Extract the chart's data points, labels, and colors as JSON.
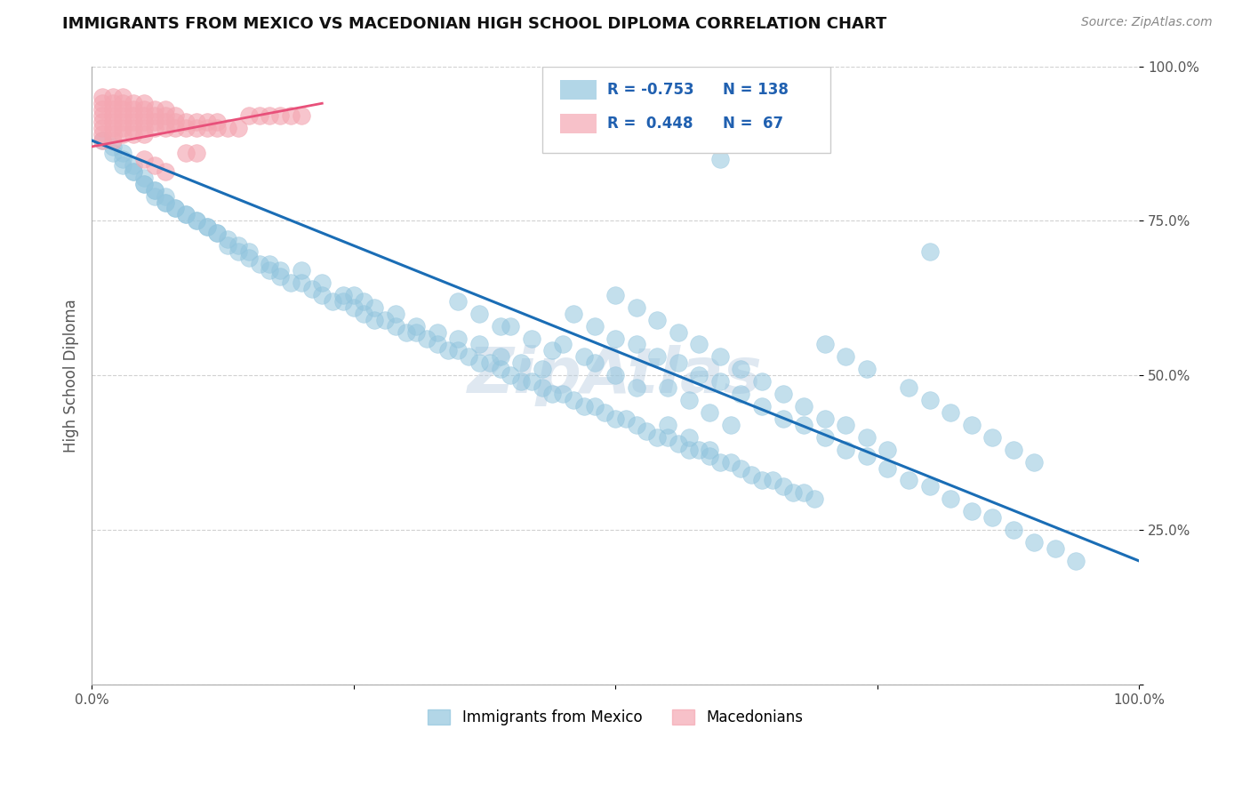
{
  "title": "IMMIGRANTS FROM MEXICO VS MACEDONIAN HIGH SCHOOL DIPLOMA CORRELATION CHART",
  "source": "Source: ZipAtlas.com",
  "ylabel": "High School Diploma",
  "xlim": [
    0,
    1
  ],
  "ylim": [
    0,
    1
  ],
  "watermark": "ZipAtlas",
  "blue_color": "#92c5de",
  "pink_color": "#f4a7b2",
  "line_color": "#1a6db5",
  "pink_line_color": "#e8507a",
  "blue_scatter": [
    [
      0.01,
      0.88
    ],
    [
      0.02,
      0.87
    ],
    [
      0.02,
      0.86
    ],
    [
      0.03,
      0.86
    ],
    [
      0.03,
      0.85
    ],
    [
      0.03,
      0.84
    ],
    [
      0.04,
      0.84
    ],
    [
      0.04,
      0.83
    ],
    [
      0.04,
      0.83
    ],
    [
      0.05,
      0.82
    ],
    [
      0.05,
      0.81
    ],
    [
      0.05,
      0.81
    ],
    [
      0.06,
      0.8
    ],
    [
      0.06,
      0.8
    ],
    [
      0.06,
      0.79
    ],
    [
      0.07,
      0.79
    ],
    [
      0.07,
      0.78
    ],
    [
      0.07,
      0.78
    ],
    [
      0.08,
      0.77
    ],
    [
      0.08,
      0.77
    ],
    [
      0.09,
      0.76
    ],
    [
      0.09,
      0.76
    ],
    [
      0.1,
      0.75
    ],
    [
      0.1,
      0.75
    ],
    [
      0.11,
      0.74
    ],
    [
      0.11,
      0.74
    ],
    [
      0.12,
      0.73
    ],
    [
      0.12,
      0.73
    ],
    [
      0.13,
      0.72
    ],
    [
      0.13,
      0.71
    ],
    [
      0.14,
      0.71
    ],
    [
      0.14,
      0.7
    ],
    [
      0.15,
      0.7
    ],
    [
      0.15,
      0.69
    ],
    [
      0.16,
      0.68
    ],
    [
      0.17,
      0.68
    ],
    [
      0.17,
      0.67
    ],
    [
      0.18,
      0.67
    ],
    [
      0.18,
      0.66
    ],
    [
      0.19,
      0.65
    ],
    [
      0.2,
      0.65
    ],
    [
      0.21,
      0.64
    ],
    [
      0.22,
      0.63
    ],
    [
      0.23,
      0.62
    ],
    [
      0.24,
      0.62
    ],
    [
      0.25,
      0.61
    ],
    [
      0.26,
      0.6
    ],
    [
      0.27,
      0.59
    ],
    [
      0.28,
      0.59
    ],
    [
      0.29,
      0.58
    ],
    [
      0.3,
      0.57
    ],
    [
      0.31,
      0.57
    ],
    [
      0.32,
      0.56
    ],
    [
      0.33,
      0.55
    ],
    [
      0.34,
      0.54
    ],
    [
      0.35,
      0.54
    ],
    [
      0.36,
      0.53
    ],
    [
      0.37,
      0.52
    ],
    [
      0.38,
      0.52
    ],
    [
      0.39,
      0.51
    ],
    [
      0.4,
      0.5
    ],
    [
      0.41,
      0.49
    ],
    [
      0.42,
      0.49
    ],
    [
      0.43,
      0.48
    ],
    [
      0.44,
      0.47
    ],
    [
      0.45,
      0.47
    ],
    [
      0.46,
      0.46
    ],
    [
      0.47,
      0.45
    ],
    [
      0.48,
      0.45
    ],
    [
      0.49,
      0.44
    ],
    [
      0.5,
      0.43
    ],
    [
      0.51,
      0.43
    ],
    [
      0.52,
      0.42
    ],
    [
      0.53,
      0.41
    ],
    [
      0.54,
      0.4
    ],
    [
      0.55,
      0.4
    ],
    [
      0.56,
      0.39
    ],
    [
      0.57,
      0.38
    ],
    [
      0.58,
      0.38
    ],
    [
      0.59,
      0.37
    ],
    [
      0.6,
      0.36
    ],
    [
      0.61,
      0.36
    ],
    [
      0.62,
      0.35
    ],
    [
      0.63,
      0.34
    ],
    [
      0.64,
      0.33
    ],
    [
      0.65,
      0.33
    ],
    [
      0.66,
      0.32
    ],
    [
      0.67,
      0.31
    ],
    [
      0.68,
      0.31
    ],
    [
      0.69,
      0.3
    ],
    [
      0.25,
      0.63
    ],
    [
      0.27,
      0.61
    ],
    [
      0.29,
      0.6
    ],
    [
      0.31,
      0.58
    ],
    [
      0.33,
      0.57
    ],
    [
      0.35,
      0.56
    ],
    [
      0.37,
      0.55
    ],
    [
      0.39,
      0.53
    ],
    [
      0.41,
      0.52
    ],
    [
      0.43,
      0.51
    ],
    [
      0.2,
      0.67
    ],
    [
      0.22,
      0.65
    ],
    [
      0.24,
      0.63
    ],
    [
      0.26,
      0.62
    ],
    [
      0.46,
      0.6
    ],
    [
      0.48,
      0.58
    ],
    [
      0.5,
      0.56
    ],
    [
      0.52,
      0.55
    ],
    [
      0.54,
      0.53
    ],
    [
      0.56,
      0.52
    ],
    [
      0.58,
      0.5
    ],
    [
      0.6,
      0.49
    ],
    [
      0.62,
      0.47
    ],
    [
      0.64,
      0.45
    ],
    [
      0.66,
      0.43
    ],
    [
      0.68,
      0.42
    ],
    [
      0.7,
      0.4
    ],
    [
      0.72,
      0.38
    ],
    [
      0.74,
      0.37
    ],
    [
      0.76,
      0.35
    ],
    [
      0.78,
      0.33
    ],
    [
      0.8,
      0.32
    ],
    [
      0.82,
      0.3
    ],
    [
      0.84,
      0.28
    ],
    [
      0.86,
      0.27
    ],
    [
      0.88,
      0.25
    ],
    [
      0.9,
      0.23
    ],
    [
      0.92,
      0.22
    ],
    [
      0.94,
      0.2
    ],
    [
      0.5,
      0.63
    ],
    [
      0.52,
      0.61
    ],
    [
      0.54,
      0.59
    ],
    [
      0.56,
      0.57
    ],
    [
      0.58,
      0.55
    ],
    [
      0.6,
      0.53
    ],
    [
      0.62,
      0.51
    ],
    [
      0.64,
      0.49
    ],
    [
      0.66,
      0.47
    ],
    [
      0.68,
      0.45
    ],
    [
      0.7,
      0.43
    ],
    [
      0.72,
      0.42
    ],
    [
      0.74,
      0.4
    ],
    [
      0.76,
      0.38
    ],
    [
      0.55,
      0.48
    ],
    [
      0.57,
      0.46
    ],
    [
      0.59,
      0.44
    ],
    [
      0.61,
      0.42
    ],
    [
      0.55,
      0.42
    ],
    [
      0.57,
      0.4
    ],
    [
      0.59,
      0.38
    ],
    [
      0.48,
      0.52
    ],
    [
      0.5,
      0.5
    ],
    [
      0.52,
      0.48
    ],
    [
      0.45,
      0.55
    ],
    [
      0.47,
      0.53
    ],
    [
      0.4,
      0.58
    ],
    [
      0.42,
      0.56
    ],
    [
      0.44,
      0.54
    ],
    [
      0.35,
      0.62
    ],
    [
      0.37,
      0.6
    ],
    [
      0.39,
      0.58
    ],
    [
      0.7,
      0.55
    ],
    [
      0.72,
      0.53
    ],
    [
      0.74,
      0.51
    ],
    [
      0.78,
      0.48
    ],
    [
      0.8,
      0.46
    ],
    [
      0.82,
      0.44
    ],
    [
      0.84,
      0.42
    ],
    [
      0.86,
      0.4
    ],
    [
      0.88,
      0.38
    ],
    [
      0.9,
      0.36
    ],
    [
      0.8,
      0.7
    ],
    [
      0.6,
      0.85
    ]
  ],
  "pink_scatter": [
    [
      0.01,
      0.95
    ],
    [
      0.01,
      0.94
    ],
    [
      0.01,
      0.93
    ],
    [
      0.01,
      0.92
    ],
    [
      0.01,
      0.91
    ],
    [
      0.01,
      0.9
    ],
    [
      0.01,
      0.89
    ],
    [
      0.01,
      0.88
    ],
    [
      0.02,
      0.95
    ],
    [
      0.02,
      0.94
    ],
    [
      0.02,
      0.93
    ],
    [
      0.02,
      0.92
    ],
    [
      0.02,
      0.91
    ],
    [
      0.02,
      0.9
    ],
    [
      0.02,
      0.89
    ],
    [
      0.02,
      0.88
    ],
    [
      0.03,
      0.95
    ],
    [
      0.03,
      0.94
    ],
    [
      0.03,
      0.93
    ],
    [
      0.03,
      0.92
    ],
    [
      0.03,
      0.91
    ],
    [
      0.03,
      0.9
    ],
    [
      0.03,
      0.89
    ],
    [
      0.04,
      0.94
    ],
    [
      0.04,
      0.93
    ],
    [
      0.04,
      0.92
    ],
    [
      0.04,
      0.91
    ],
    [
      0.04,
      0.9
    ],
    [
      0.04,
      0.89
    ],
    [
      0.05,
      0.94
    ],
    [
      0.05,
      0.93
    ],
    [
      0.05,
      0.92
    ],
    [
      0.05,
      0.91
    ],
    [
      0.05,
      0.9
    ],
    [
      0.05,
      0.89
    ],
    [
      0.06,
      0.93
    ],
    [
      0.06,
      0.92
    ],
    [
      0.06,
      0.91
    ],
    [
      0.06,
      0.9
    ],
    [
      0.07,
      0.93
    ],
    [
      0.07,
      0.92
    ],
    [
      0.07,
      0.91
    ],
    [
      0.07,
      0.9
    ],
    [
      0.08,
      0.92
    ],
    [
      0.08,
      0.91
    ],
    [
      0.08,
      0.9
    ],
    [
      0.09,
      0.91
    ],
    [
      0.09,
      0.9
    ],
    [
      0.1,
      0.91
    ],
    [
      0.1,
      0.9
    ],
    [
      0.11,
      0.91
    ],
    [
      0.11,
      0.9
    ],
    [
      0.12,
      0.91
    ],
    [
      0.12,
      0.9
    ],
    [
      0.13,
      0.9
    ],
    [
      0.14,
      0.9
    ],
    [
      0.05,
      0.85
    ],
    [
      0.06,
      0.84
    ],
    [
      0.07,
      0.83
    ],
    [
      0.15,
      0.92
    ],
    [
      0.16,
      0.92
    ],
    [
      0.17,
      0.92
    ],
    [
      0.18,
      0.92
    ],
    [
      0.19,
      0.92
    ],
    [
      0.2,
      0.92
    ],
    [
      0.09,
      0.86
    ],
    [
      0.1,
      0.86
    ]
  ],
  "blue_line_x": [
    0.0,
    1.0
  ],
  "blue_line_y": [
    0.88,
    0.2
  ],
  "pink_line_x": [
    0.0,
    0.22
  ],
  "pink_line_y": [
    0.87,
    0.94
  ]
}
